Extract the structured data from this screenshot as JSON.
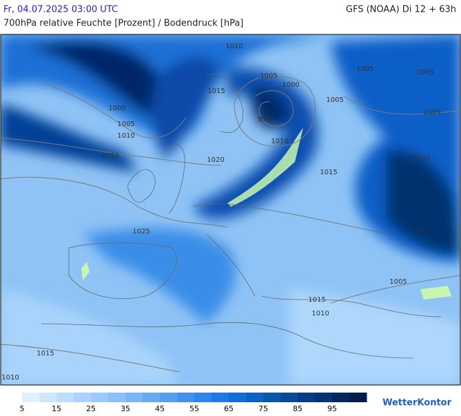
{
  "header": {
    "date": "Fr, 04.07.2025 03:00 UTC",
    "model": "GFS (NOAA) Di 12 + 63h",
    "subtitle": "700hPa relative Feuchte [Prozent] / Bodendruck [hPa]"
  },
  "map": {
    "isobar_labels": [
      "1010",
      "1005",
      "1005",
      "1000",
      "1005",
      "1010",
      "1015",
      "1005",
      "1000",
      "1005",
      "995",
      "1010",
      "1020",
      "1020",
      "1015",
      "1010",
      "1009",
      "1025",
      "1015",
      "1005",
      "1015",
      "1010",
      "1015",
      "1010"
    ]
  },
  "legend": {
    "colors": [
      "#e0f0ff",
      "#cfe6ff",
      "#bddcff",
      "#acd3ff",
      "#9ccaff",
      "#8cc0fc",
      "#7bb5f8",
      "#68a9f4",
      "#559ef1",
      "#4292ee",
      "#2e86ea",
      "#1a7ae6",
      "#0f6ed8",
      "#0b62c4",
      "#0956af",
      "#074a9a",
      "#053e86",
      "#043272",
      "#03285f",
      "#021d4c"
    ],
    "ticks": [
      5,
      15,
      25,
      35,
      45,
      55,
      65,
      75,
      85,
      95
    ]
  },
  "logo": "WetterKontor"
}
